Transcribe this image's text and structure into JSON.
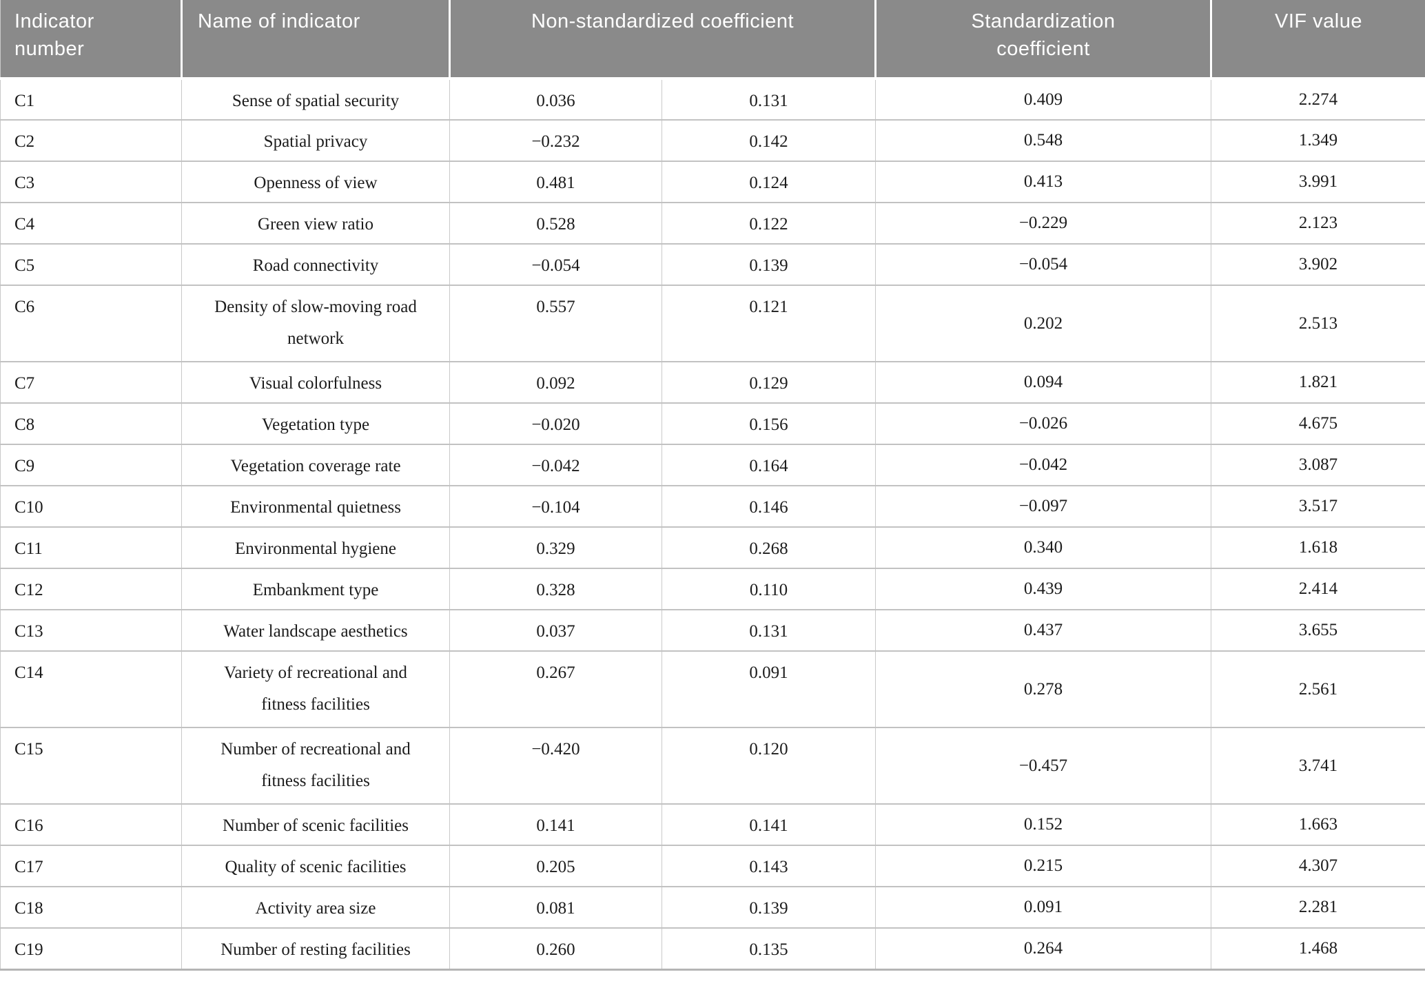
{
  "table": {
    "header": {
      "indicator_number": "Indicator\nnumber",
      "name_of_indicator": "Name of indicator",
      "non_standardized_coefficient": "Non-standardized coefficient",
      "standardization_coefficient": "Standardization\ncoefficient",
      "vif_value": "VIF value"
    },
    "rows": [
      {
        "indicator": "C1",
        "name": "Sense of spatial security",
        "b": "0.036",
        "se": "0.131",
        "beta": "0.409",
        "vif": "2.274"
      },
      {
        "indicator": "C2",
        "name": "Spatial privacy",
        "b": "−0.232",
        "se": "0.142",
        "beta": "0.548",
        "vif": "1.349"
      },
      {
        "indicator": "C3",
        "name": "Openness of view",
        "b": "0.481",
        "se": "0.124",
        "beta": "0.413",
        "vif": "3.991"
      },
      {
        "indicator": "C4",
        "name": "Green view ratio",
        "b": "0.528",
        "se": "0.122",
        "beta": "−0.229",
        "vif": "2.123"
      },
      {
        "indicator": "C5",
        "name": "Road connectivity",
        "b": "−0.054",
        "se": "0.139",
        "beta": "−0.054",
        "vif": "3.902"
      },
      {
        "indicator": "C6",
        "name": [
          "Density of slow-moving road",
          "network"
        ],
        "b": "0.557",
        "se": "0.121",
        "beta": "0.202",
        "vif": "2.513"
      },
      {
        "indicator": "C7",
        "name": "Visual colorfulness",
        "b": "0.092",
        "se": "0.129",
        "beta": "0.094",
        "vif": "1.821"
      },
      {
        "indicator": "C8",
        "name": "Vegetation type",
        "b": "−0.020",
        "se": "0.156",
        "beta": "−0.026",
        "vif": "4.675"
      },
      {
        "indicator": "C9",
        "name": "Vegetation coverage rate",
        "b": "−0.042",
        "se": "0.164",
        "beta": "−0.042",
        "vif": "3.087"
      },
      {
        "indicator": "C10",
        "name": "Environmental quietness",
        "b": "−0.104",
        "se": "0.146",
        "beta": "−0.097",
        "vif": "3.517"
      },
      {
        "indicator": "C11",
        "name": "Environmental hygiene",
        "b": "0.329",
        "se": "0.268",
        "beta": "0.340",
        "vif": "1.618"
      },
      {
        "indicator": "C12",
        "name": "Embankment type",
        "b": "0.328",
        "se": "0.110",
        "beta": "0.439",
        "vif": "2.414"
      },
      {
        "indicator": "C13",
        "name": "Water landscape aesthetics",
        "b": "0.037",
        "se": "0.131",
        "beta": "0.437",
        "vif": "3.655"
      },
      {
        "indicator": "C14",
        "name": [
          "Variety of recreational and",
          "fitness facilities"
        ],
        "b": "0.267",
        "se": "0.091",
        "beta": "0.278",
        "vif": "2.561"
      },
      {
        "indicator": "C15",
        "name": [
          "Number of recreational and",
          "fitness facilities"
        ],
        "b": "−0.420",
        "se": "0.120",
        "beta": "−0.457",
        "vif": "3.741"
      },
      {
        "indicator": "C16",
        "name": "Number of scenic facilities",
        "b": "0.141",
        "se": "0.141",
        "beta": "0.152",
        "vif": "1.663"
      },
      {
        "indicator": "C17",
        "name": "Quality of scenic facilities",
        "b": "0.205",
        "se": "0.143",
        "beta": "0.215",
        "vif": "4.307"
      },
      {
        "indicator": "C18",
        "name": "Activity area size",
        "b": "0.081",
        "se": "0.139",
        "beta": "0.091",
        "vif": "2.281"
      },
      {
        "indicator": "C19",
        "name": "Number of resting facilities",
        "b": "0.260",
        "se": "0.135",
        "beta": "0.264",
        "vif": "1.468"
      }
    ]
  },
  "colors": {
    "header_background": "#8a8a8a",
    "header_text": "#ffffff",
    "row_divider": "#c2c2c2",
    "column_divider": "#c9c9c9",
    "bottom_border": "#b5b5b5",
    "body_text": "#1c1c1c"
  }
}
